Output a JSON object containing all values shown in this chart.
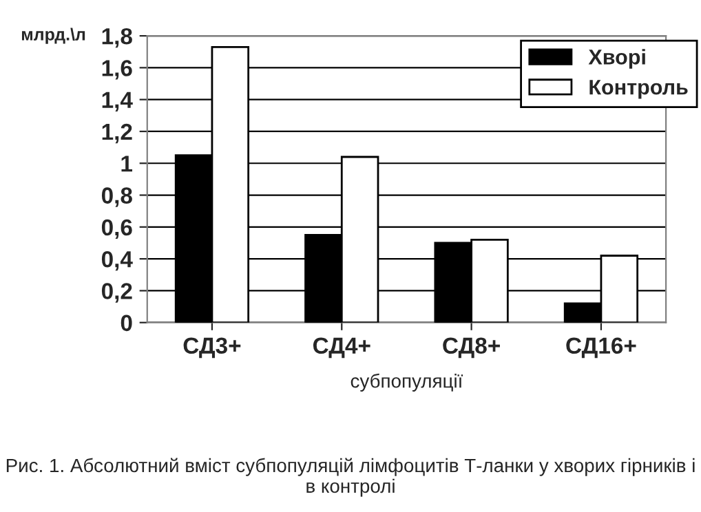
{
  "chart_data": {
    "type": "bar",
    "ylabel": "млрд.\\л",
    "xlabel": "субпопуляції",
    "categories": [
      "СД3+",
      "СД4+",
      "СД8+",
      "СД16+"
    ],
    "series": [
      {
        "name": "Хворі",
        "color": "#000000",
        "values": [
          1.05,
          0.55,
          0.5,
          0.12
        ]
      },
      {
        "name": "Контроль",
        "color": "#ffffff",
        "values": [
          1.73,
          1.04,
          0.52,
          0.42
        ]
      }
    ],
    "ylim": [
      0,
      1.8
    ],
    "yticks": [
      {
        "value": 0,
        "label": "0"
      },
      {
        "value": 0.2,
        "label": "0,2"
      },
      {
        "value": 0.4,
        "label": "0,4"
      },
      {
        "value": 0.6,
        "label": "0,6"
      },
      {
        "value": 0.8,
        "label": "0,8"
      },
      {
        "value": 1,
        "label": "1"
      },
      {
        "value": 1.2,
        "label": "1,2"
      },
      {
        "value": 1.4,
        "label": "1,4"
      },
      {
        "value": 1.6,
        "label": "1,6"
      },
      {
        "value": 1.8,
        "label": "1,8"
      }
    ],
    "grid": "y",
    "legend": "top right",
    "annotations": [
      "Рис. 1. Абсолютний вміст субпопуляцій лімфоцитів Т-ланки у хворих гірників і в контролі"
    ]
  }
}
